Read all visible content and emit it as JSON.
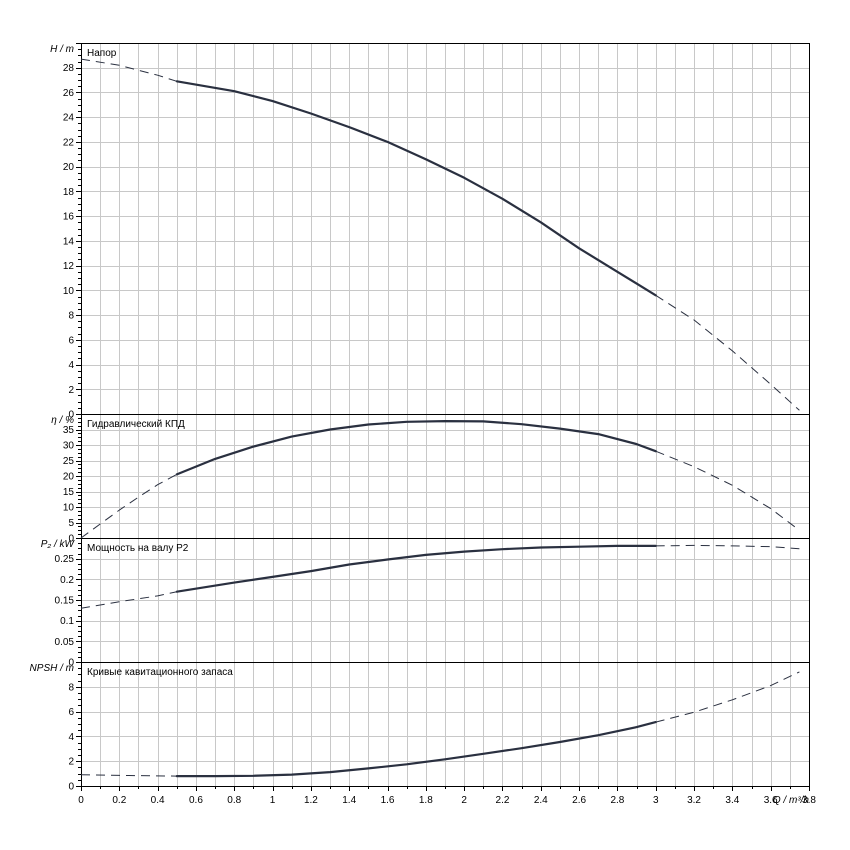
{
  "chart_data": {
    "type": "line",
    "x_axis": {
      "label": "Q / m³/h",
      "range": [
        0,
        3.8
      ],
      "ticks": [
        "0",
        "0.2",
        "0.4",
        "0.6",
        "0.8",
        "1",
        "1.2",
        "1.4",
        "1.6",
        "1.8",
        "2",
        "2.2",
        "2.4",
        "2.6",
        "2.8",
        "3",
        "3.2",
        "3.4",
        "3.6",
        "3.8"
      ]
    },
    "panels": [
      {
        "id": "head",
        "title": "Напор",
        "ylabel": "H / m",
        "ylim": [
          0,
          30
        ],
        "yticks": [
          "0",
          "2",
          "4",
          "6",
          "8",
          "10",
          "12",
          "14",
          "16",
          "18",
          "20",
          "22",
          "24",
          "26",
          "28"
        ],
        "solid": [
          [
            0.5,
            26.9
          ],
          [
            0.8,
            26.1
          ],
          [
            1.0,
            25.3
          ],
          [
            1.2,
            24.3
          ],
          [
            1.4,
            23.2
          ],
          [
            1.6,
            22.0
          ],
          [
            1.8,
            20.6
          ],
          [
            2.0,
            19.1
          ],
          [
            2.2,
            17.4
          ],
          [
            2.4,
            15.5
          ],
          [
            2.6,
            13.4
          ],
          [
            2.8,
            11.5
          ],
          [
            3.0,
            9.6
          ]
        ],
        "dashed_left": [
          [
            0.0,
            28.7
          ],
          [
            0.2,
            28.2
          ],
          [
            0.4,
            27.4
          ],
          [
            0.5,
            26.9
          ]
        ],
        "dashed_right": [
          [
            3.0,
            9.6
          ],
          [
            3.2,
            7.6
          ],
          [
            3.4,
            5.1
          ],
          [
            3.6,
            2.4
          ],
          [
            3.75,
            0.3
          ]
        ]
      },
      {
        "id": "efficiency",
        "title": "Гидравлический КПД",
        "ylabel": "η / %",
        "ylim": [
          0,
          40
        ],
        "yticks": [
          "0",
          "5",
          "10",
          "15",
          "20",
          "25",
          "30",
          "35"
        ],
        "solid": [
          [
            0.5,
            20.5
          ],
          [
            0.7,
            25.5
          ],
          [
            0.9,
            29.5
          ],
          [
            1.1,
            32.7
          ],
          [
            1.3,
            35.0
          ],
          [
            1.5,
            36.6
          ],
          [
            1.7,
            37.5
          ],
          [
            1.9,
            37.7
          ],
          [
            2.1,
            37.6
          ],
          [
            2.3,
            36.7
          ],
          [
            2.5,
            35.3
          ],
          [
            2.7,
            33.5
          ],
          [
            2.9,
            30.3
          ],
          [
            3.0,
            28.0
          ]
        ],
        "dashed_left": [
          [
            0.0,
            0.0
          ],
          [
            0.1,
            4.5
          ],
          [
            0.2,
            9.0
          ],
          [
            0.3,
            13.2
          ],
          [
            0.4,
            17.2
          ],
          [
            0.5,
            20.5
          ]
        ],
        "dashed_right": [
          [
            3.0,
            28.0
          ],
          [
            3.2,
            23.0
          ],
          [
            3.4,
            17.0
          ],
          [
            3.6,
            9.5
          ],
          [
            3.75,
            2.5
          ]
        ]
      },
      {
        "id": "power",
        "title": "Мощность на валу P2",
        "ylabel": "P₂ / kW",
        "ylim": [
          0,
          0.3
        ],
        "yticks": [
          "0",
          "0.05",
          "0.1",
          "0.15",
          "0.2",
          "0.25"
        ],
        "solid": [
          [
            0.5,
            0.17
          ],
          [
            0.8,
            0.192
          ],
          [
            1.0,
            0.206
          ],
          [
            1.2,
            0.22
          ],
          [
            1.4,
            0.236
          ],
          [
            1.6,
            0.248
          ],
          [
            1.8,
            0.259
          ],
          [
            2.0,
            0.267
          ],
          [
            2.2,
            0.273
          ],
          [
            2.4,
            0.277
          ],
          [
            2.6,
            0.279
          ],
          [
            2.8,
            0.281
          ],
          [
            3.0,
            0.281
          ]
        ],
        "dashed_left": [
          [
            0.0,
            0.13
          ],
          [
            0.2,
            0.146
          ],
          [
            0.4,
            0.16
          ],
          [
            0.5,
            0.17
          ]
        ],
        "dashed_right": [
          [
            3.0,
            0.281
          ],
          [
            3.2,
            0.282
          ],
          [
            3.4,
            0.281
          ],
          [
            3.6,
            0.279
          ],
          [
            3.75,
            0.274
          ]
        ]
      },
      {
        "id": "npsh",
        "title": "Кривые кавитационного запаса",
        "ylabel": "NPSH / m",
        "ylim": [
          0,
          10
        ],
        "yticks": [
          "0",
          "2",
          "4",
          "6",
          "8"
        ],
        "solid": [
          [
            0.5,
            0.8
          ],
          [
            0.7,
            0.8
          ],
          [
            0.9,
            0.82
          ],
          [
            1.1,
            0.92
          ],
          [
            1.3,
            1.12
          ],
          [
            1.5,
            1.42
          ],
          [
            1.7,
            1.75
          ],
          [
            1.9,
            2.15
          ],
          [
            2.1,
            2.6
          ],
          [
            2.3,
            3.05
          ],
          [
            2.5,
            3.55
          ],
          [
            2.7,
            4.1
          ],
          [
            2.9,
            4.75
          ],
          [
            3.0,
            5.15
          ]
        ],
        "dashed_left": [
          [
            0.0,
            0.9
          ],
          [
            0.25,
            0.85
          ],
          [
            0.5,
            0.8
          ]
        ],
        "dashed_right": [
          [
            3.0,
            5.15
          ],
          [
            3.2,
            5.95
          ],
          [
            3.4,
            6.95
          ],
          [
            3.6,
            8.1
          ],
          [
            3.75,
            9.2
          ]
        ]
      }
    ]
  }
}
